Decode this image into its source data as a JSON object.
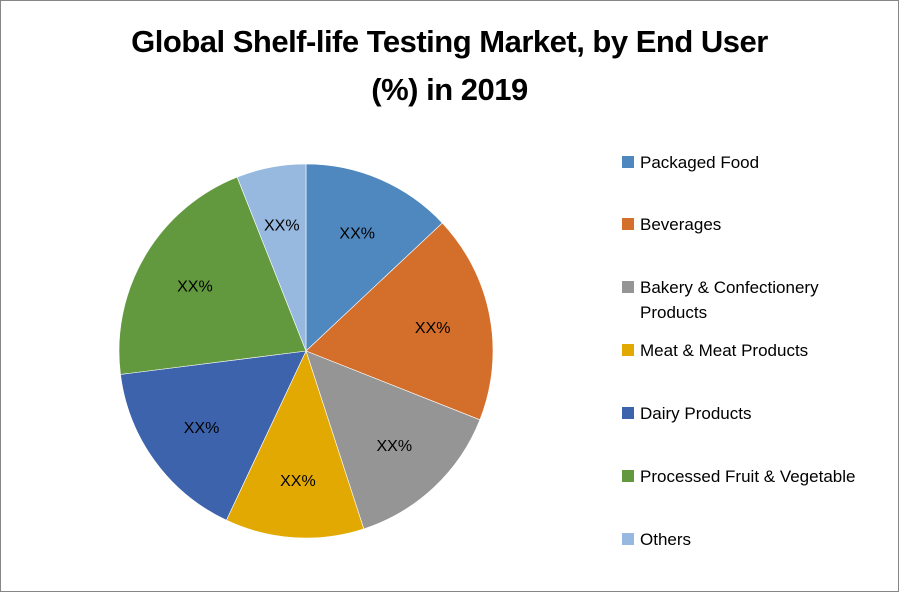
{
  "chart_data": {
    "type": "pie",
    "title": "Global Shelf-life Testing Market, by End User (%) in 2019",
    "title_lines": [
      "Global Shelf-life Testing Market, by End User",
      "(%) in 2019"
    ],
    "start_angle": "12 o'clock, clockwise",
    "legend_position": "right",
    "categories": [
      "Packaged Food",
      "Beverages",
      "Bakery & Confectionery Products",
      "Meat & Meat Products",
      "Dairy Products",
      "Processed Fruit & Vegetable",
      "Others"
    ],
    "values": [
      13,
      18,
      14,
      12,
      16,
      21,
      6
    ],
    "value_note": "estimated from slice angles; chart data labels show placeholder text",
    "data_labels": [
      "XX%",
      "XX%",
      "XX%",
      "XX%",
      "XX%",
      "XX%",
      "XX%"
    ],
    "colors": [
      "#4f88be",
      "#d46f2b",
      "#959595",
      "#e2a902",
      "#3d63ad",
      "#63993e",
      "#97b9e0"
    ]
  },
  "legend": {
    "items": [
      {
        "label": "Packaged Food",
        "color": "#4f88be"
      },
      {
        "label": "Beverages",
        "color": "#d46f2b"
      },
      {
        "label": "Bakery & Confectionery Products",
        "color": "#959595"
      },
      {
        "label": "Meat & Meat Products",
        "color": "#e2a902"
      },
      {
        "label": "Dairy Products",
        "color": "#3d63ad"
      },
      {
        "label": "Processed Fruit & Vegetable",
        "color": "#63993e"
      },
      {
        "label": "Others",
        "color": "#97b9e0"
      }
    ]
  }
}
